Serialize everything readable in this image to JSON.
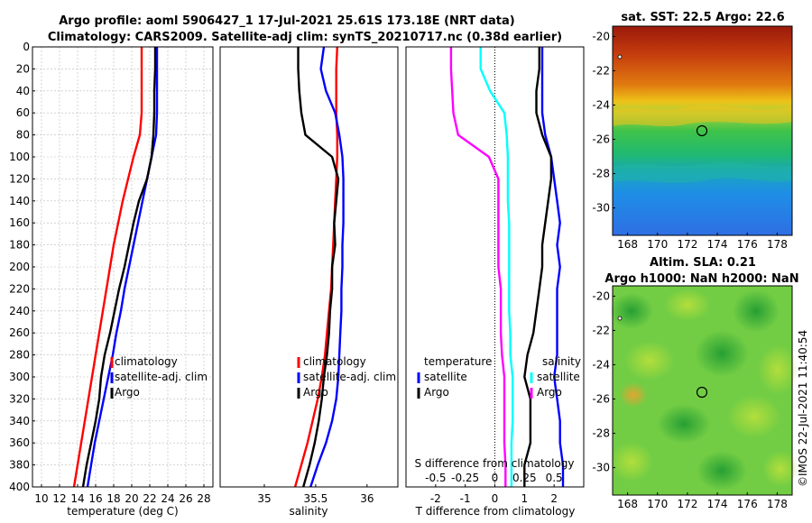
{
  "header": {
    "title_line1": "Argo profile: aoml 5906427_1 17-Jul-2021 25.61S 173.18E (NRT data)",
    "title_line2": "Climatology: CARS2009. Satellite-adj clim: synTS_20210717.nc (0.38d earlier)"
  },
  "sst_panel": {
    "title": "sat. SST: 22.5 Argo: 22.6",
    "lat_ticks": [
      "-20",
      "-22",
      "-24",
      "-26",
      "-28",
      "-30"
    ],
    "lon_ticks": [
      "168",
      "170",
      "172",
      "174",
      "176",
      "178"
    ]
  },
  "sla_panel": {
    "title_line1": "Altim. SLA: 0.21",
    "title_line2": "Argo h1000: NaN h2000: NaN",
    "lat_ticks": [
      "-20",
      "-22",
      "-24",
      "-26",
      "-28",
      "-30"
    ],
    "lon_ticks": [
      "168",
      "170",
      "172",
      "174",
      "176",
      "178"
    ]
  },
  "side_stamp": "©IMOS 22-Jul-2021 11:40:54",
  "colors": {
    "climatology": "#ff0000",
    "satellite": "#0000ff",
    "argo": "#000000",
    "salinity_satellite": "#00ffff",
    "salinity_argo": "#ff00ff"
  },
  "chart_data": [
    {
      "type": "line",
      "title": "",
      "xlabel": "temperature (deg C)",
      "ylabel": "",
      "xlim": [
        9,
        29
      ],
      "ylim": [
        400,
        0
      ],
      "grid": true,
      "xticks": [
        "10",
        "12",
        "14",
        "16",
        "18",
        "20",
        "22",
        "24",
        "26",
        "28"
      ],
      "yticks": [
        "0",
        "20",
        "40",
        "60",
        "80",
        "100",
        "120",
        "140",
        "160",
        "180",
        "200",
        "220",
        "240",
        "260",
        "280",
        "300",
        "320",
        "340",
        "360",
        "380",
        "400"
      ],
      "depth": [
        0,
        20,
        40,
        60,
        80,
        100,
        120,
        140,
        160,
        180,
        200,
        220,
        240,
        260,
        280,
        300,
        320,
        340,
        360,
        380,
        400
      ],
      "series": [
        {
          "name": "climatology",
          "values": [
            21.1,
            21.1,
            21.1,
            21.1,
            20.9,
            20.2,
            19.6,
            19.0,
            18.5,
            18.0,
            17.6,
            17.2,
            16.8,
            16.4,
            16.0,
            15.6,
            15.2,
            14.8,
            14.4,
            14.0,
            13.6
          ]
        },
        {
          "name": "satellite-adj. clim",
          "values": [
            22.8,
            22.8,
            22.8,
            22.8,
            22.7,
            22.2,
            21.7,
            21.2,
            20.7,
            20.2,
            19.7,
            19.2,
            18.8,
            18.3,
            17.9,
            17.4,
            16.9,
            16.4,
            15.9,
            15.5,
            15.1
          ]
        },
        {
          "name": "Argo",
          "values": [
            22.6,
            22.6,
            22.5,
            22.5,
            22.4,
            22.2,
            21.7,
            20.8,
            20.2,
            19.7,
            19.2,
            18.6,
            18.1,
            17.6,
            17.0,
            16.6,
            16.4,
            16.0,
            15.5,
            15.0,
            14.6
          ]
        }
      ],
      "legend": [
        "climatology",
        "satellite-adj. clim",
        "Argo"
      ]
    },
    {
      "type": "line",
      "xlabel": "salinity",
      "xlim": [
        34.57,
        36.3
      ],
      "ylim": [
        400,
        0
      ],
      "grid": false,
      "xticks": [
        "35",
        "35.5",
        "36"
      ],
      "depth": [
        0,
        20,
        40,
        60,
        80,
        100,
        120,
        140,
        160,
        180,
        200,
        220,
        240,
        260,
        280,
        300,
        320,
        340,
        360,
        380,
        400
      ],
      "series": [
        {
          "name": "climatology",
          "values": [
            35.71,
            35.7,
            35.7,
            35.7,
            35.71,
            35.71,
            35.7,
            35.69,
            35.68,
            35.67,
            35.66,
            35.65,
            35.63,
            35.61,
            35.59,
            35.56,
            35.52,
            35.47,
            35.42,
            35.36,
            35.3
          ]
        },
        {
          "name": "satellite-adj. clim",
          "values": [
            35.58,
            35.55,
            35.6,
            35.69,
            35.73,
            35.76,
            35.77,
            35.77,
            35.77,
            35.76,
            35.76,
            35.75,
            35.75,
            35.74,
            35.73,
            35.72,
            35.7,
            35.66,
            35.6,
            35.52,
            35.45
          ]
        },
        {
          "name": "Argo",
          "values": [
            35.33,
            35.33,
            35.34,
            35.36,
            35.4,
            35.66,
            35.72,
            35.7,
            35.68,
            35.69,
            35.66,
            35.66,
            35.64,
            35.63,
            35.61,
            35.58,
            35.56,
            35.53,
            35.49,
            35.44,
            35.38
          ]
        }
      ],
      "legend": [
        "climatology",
        "satellite-adj. clim",
        "Argo"
      ]
    },
    {
      "type": "line",
      "xlabel": "T difference from climatology",
      "xlabel_top": "S difference from climatology",
      "xlim": [
        -3,
        3
      ],
      "ylim": [
        400,
        0
      ],
      "grid": false,
      "xticks": [
        "-2",
        "-1",
        "0",
        "1",
        "2"
      ],
      "xticks_top": [
        "-0.5",
        "-0.25",
        "0",
        "0.25",
        "0.5"
      ],
      "depth": [
        0,
        20,
        40,
        60,
        80,
        100,
        120,
        140,
        160,
        180,
        200,
        220,
        240,
        260,
        280,
        300,
        320,
        340,
        360,
        380,
        400
      ],
      "series": [
        {
          "name": "temperature satellite",
          "values": [
            1.6,
            1.6,
            1.6,
            1.6,
            1.7,
            1.9,
            2.0,
            2.1,
            2.2,
            2.1,
            2.2,
            2.1,
            2.1,
            2.1,
            2.1,
            2.0,
            2.1,
            2.2,
            2.2,
            2.3,
            2.3
          ]
        },
        {
          "name": "temperature Argo",
          "values": [
            1.5,
            1.5,
            1.4,
            1.4,
            1.6,
            1.9,
            1.9,
            1.8,
            1.7,
            1.6,
            1.6,
            1.5,
            1.4,
            1.3,
            1.1,
            1.0,
            1.2,
            1.2,
            1.2,
            1.0,
            1.0
          ]
        },
        {
          "name": "salinity satellite",
          "values": [
            -0.12,
            -0.12,
            -0.04,
            0.08,
            0.1,
            0.11,
            0.11,
            0.11,
            0.12,
            0.12,
            0.12,
            0.12,
            0.12,
            0.13,
            0.13,
            0.15,
            0.15,
            0.15,
            0.14,
            0.14,
            0.14
          ]
        },
        {
          "name": "salinity Argo",
          "values": [
            -0.37,
            -0.37,
            -0.36,
            -0.35,
            -0.31,
            -0.05,
            0.03,
            0.03,
            0.03,
            0.03,
            0.03,
            0.05,
            0.05,
            0.05,
            0.06,
            0.08,
            0.08,
            0.08,
            0.08,
            0.09,
            0.09
          ]
        }
      ],
      "legend_left_title": "temperature",
      "legend_right_title": "salinity",
      "legend_left": [
        "satellite",
        "Argo"
      ],
      "legend_right": [
        "satellite",
        "Argo"
      ]
    }
  ]
}
